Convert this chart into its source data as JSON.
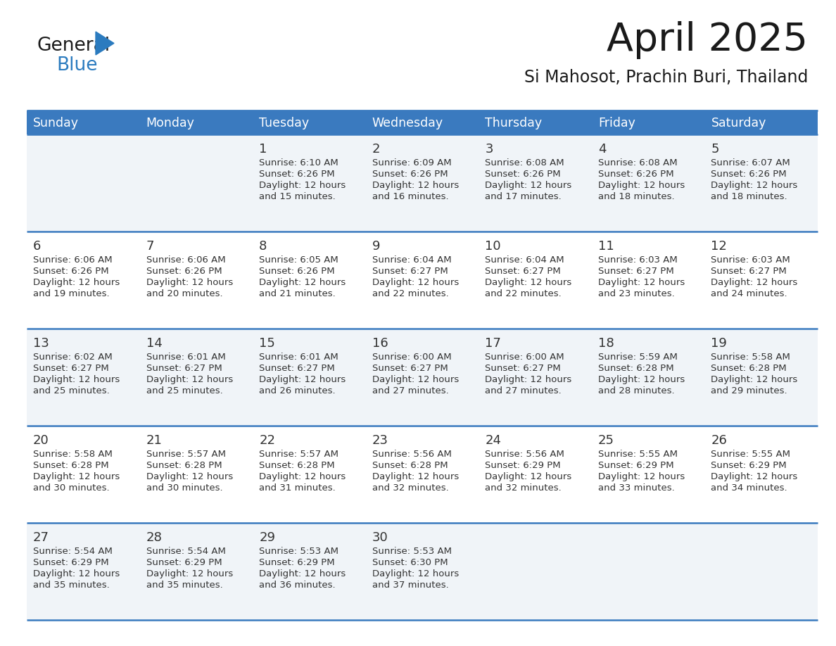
{
  "title": "April 2025",
  "subtitle": "Si Mahosot, Prachin Buri, Thailand",
  "header_bg_color": "#3a7abf",
  "header_text_color": "#ffffff",
  "days_of_week": [
    "Sunday",
    "Monday",
    "Tuesday",
    "Wednesday",
    "Thursday",
    "Friday",
    "Saturday"
  ],
  "row_bg_colors": [
    "#f0f4f8",
    "#ffffff"
  ],
  "divider_color": "#3a7abf",
  "text_color": "#333333",
  "title_color": "#1a1a1a",
  "subtitle_color": "#1a1a1a",
  "logo_general_color": "#1a1a1a",
  "logo_blue_color": "#2b7bbf",
  "logo_triangle_color": "#2b7bbf",
  "calendar_data": [
    [
      {
        "day": "",
        "sunrise": "",
        "sunset": "",
        "daylight": ""
      },
      {
        "day": "",
        "sunrise": "",
        "sunset": "",
        "daylight": ""
      },
      {
        "day": "1",
        "sunrise": "6:10 AM",
        "sunset": "6:26 PM",
        "daylight": "12 hours and 15 minutes."
      },
      {
        "day": "2",
        "sunrise": "6:09 AM",
        "sunset": "6:26 PM",
        "daylight": "12 hours and 16 minutes."
      },
      {
        "day": "3",
        "sunrise": "6:08 AM",
        "sunset": "6:26 PM",
        "daylight": "12 hours and 17 minutes."
      },
      {
        "day": "4",
        "sunrise": "6:08 AM",
        "sunset": "6:26 PM",
        "daylight": "12 hours and 18 minutes."
      },
      {
        "day": "5",
        "sunrise": "6:07 AM",
        "sunset": "6:26 PM",
        "daylight": "12 hours and 18 minutes."
      }
    ],
    [
      {
        "day": "6",
        "sunrise": "6:06 AM",
        "sunset": "6:26 PM",
        "daylight": "12 hours and 19 minutes."
      },
      {
        "day": "7",
        "sunrise": "6:06 AM",
        "sunset": "6:26 PM",
        "daylight": "12 hours and 20 minutes."
      },
      {
        "day": "8",
        "sunrise": "6:05 AM",
        "sunset": "6:26 PM",
        "daylight": "12 hours and 21 minutes."
      },
      {
        "day": "9",
        "sunrise": "6:04 AM",
        "sunset": "6:27 PM",
        "daylight": "12 hours and 22 minutes."
      },
      {
        "day": "10",
        "sunrise": "6:04 AM",
        "sunset": "6:27 PM",
        "daylight": "12 hours and 22 minutes."
      },
      {
        "day": "11",
        "sunrise": "6:03 AM",
        "sunset": "6:27 PM",
        "daylight": "12 hours and 23 minutes."
      },
      {
        "day": "12",
        "sunrise": "6:03 AM",
        "sunset": "6:27 PM",
        "daylight": "12 hours and 24 minutes."
      }
    ],
    [
      {
        "day": "13",
        "sunrise": "6:02 AM",
        "sunset": "6:27 PM",
        "daylight": "12 hours and 25 minutes."
      },
      {
        "day": "14",
        "sunrise": "6:01 AM",
        "sunset": "6:27 PM",
        "daylight": "12 hours and 25 minutes."
      },
      {
        "day": "15",
        "sunrise": "6:01 AM",
        "sunset": "6:27 PM",
        "daylight": "12 hours and 26 minutes."
      },
      {
        "day": "16",
        "sunrise": "6:00 AM",
        "sunset": "6:27 PM",
        "daylight": "12 hours and 27 minutes."
      },
      {
        "day": "17",
        "sunrise": "6:00 AM",
        "sunset": "6:27 PM",
        "daylight": "12 hours and 27 minutes."
      },
      {
        "day": "18",
        "sunrise": "5:59 AM",
        "sunset": "6:28 PM",
        "daylight": "12 hours and 28 minutes."
      },
      {
        "day": "19",
        "sunrise": "5:58 AM",
        "sunset": "6:28 PM",
        "daylight": "12 hours and 29 minutes."
      }
    ],
    [
      {
        "day": "20",
        "sunrise": "5:58 AM",
        "sunset": "6:28 PM",
        "daylight": "12 hours and 30 minutes."
      },
      {
        "day": "21",
        "sunrise": "5:57 AM",
        "sunset": "6:28 PM",
        "daylight": "12 hours and 30 minutes."
      },
      {
        "day": "22",
        "sunrise": "5:57 AM",
        "sunset": "6:28 PM",
        "daylight": "12 hours and 31 minutes."
      },
      {
        "day": "23",
        "sunrise": "5:56 AM",
        "sunset": "6:28 PM",
        "daylight": "12 hours and 32 minutes."
      },
      {
        "day": "24",
        "sunrise": "5:56 AM",
        "sunset": "6:29 PM",
        "daylight": "12 hours and 32 minutes."
      },
      {
        "day": "25",
        "sunrise": "5:55 AM",
        "sunset": "6:29 PM",
        "daylight": "12 hours and 33 minutes."
      },
      {
        "day": "26",
        "sunrise": "5:55 AM",
        "sunset": "6:29 PM",
        "daylight": "12 hours and 34 minutes."
      }
    ],
    [
      {
        "day": "27",
        "sunrise": "5:54 AM",
        "sunset": "6:29 PM",
        "daylight": "12 hours and 35 minutes."
      },
      {
        "day": "28",
        "sunrise": "5:54 AM",
        "sunset": "6:29 PM",
        "daylight": "12 hours and 35 minutes."
      },
      {
        "day": "29",
        "sunrise": "5:53 AM",
        "sunset": "6:29 PM",
        "daylight": "12 hours and 36 minutes."
      },
      {
        "day": "30",
        "sunrise": "5:53 AM",
        "sunset": "6:30 PM",
        "daylight": "12 hours and 37 minutes."
      },
      {
        "day": "",
        "sunrise": "",
        "sunset": "",
        "daylight": ""
      },
      {
        "day": "",
        "sunrise": "",
        "sunset": "",
        "daylight": ""
      },
      {
        "day": "",
        "sunrise": "",
        "sunset": "",
        "daylight": ""
      }
    ]
  ]
}
